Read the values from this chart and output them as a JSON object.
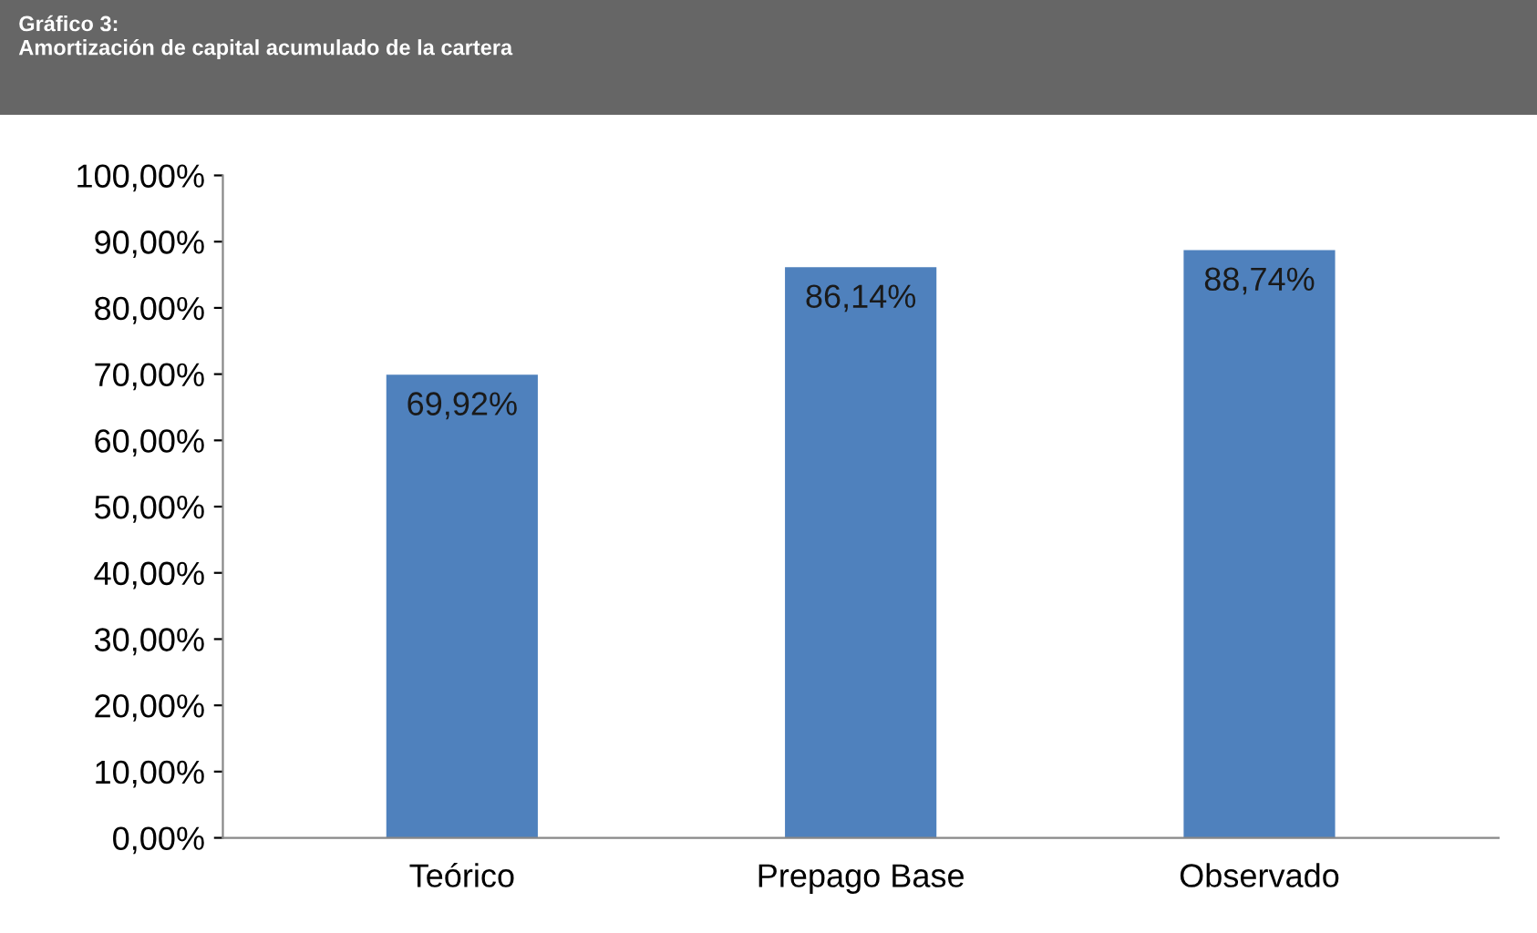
{
  "chart_data": {
    "type": "bar",
    "title": "Gráfico 3:",
    "subtitle": "Amortización de capital acumulado de la cartera",
    "categories": [
      "Teórico",
      "Prepago Base",
      "Observado"
    ],
    "values": [
      69.92,
      86.14,
      88.74
    ],
    "value_labels": [
      "69,92%",
      "86,14%",
      "88,74%"
    ],
    "color": "#4f81bd",
    "ylim": [
      0,
      100
    ],
    "yticks": [
      {
        "value": 0,
        "label": "0,00%"
      },
      {
        "value": 10,
        "label": "10,00%"
      },
      {
        "value": 20,
        "label": "20,00%"
      },
      {
        "value": 30,
        "label": "30,00%"
      },
      {
        "value": 40,
        "label": "40,00%"
      },
      {
        "value": 50,
        "label": "50,00%"
      },
      {
        "value": 60,
        "label": "60,00%"
      },
      {
        "value": 70,
        "label": "70,00%"
      },
      {
        "value": 80,
        "label": "80,00%"
      },
      {
        "value": 90,
        "label": "90,00%"
      },
      {
        "value": 100,
        "label": "100,00%"
      }
    ],
    "grid": false,
    "legend": false
  }
}
